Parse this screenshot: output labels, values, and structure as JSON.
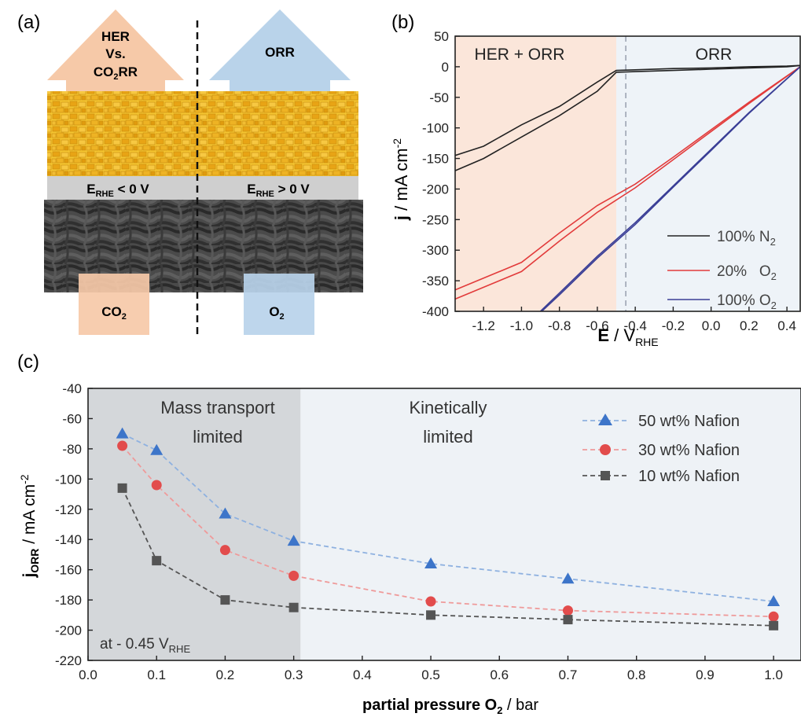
{
  "panels": {
    "a": {
      "label": "(a)",
      "arrow_left": {
        "line1": "HER",
        "line2": "Vs.",
        "line3_main": "CO",
        "line3_sub": "2",
        "line3_end": "RR"
      },
      "arrow_right": "ORR",
      "bottom_left_main": "CO",
      "bottom_left_sub": "2",
      "bottom_right_main": "O",
      "bottom_right_sub": "2",
      "band_left": {
        "main": "E",
        "sub": "RHE",
        "rest": " < 0 V"
      },
      "band_right": {
        "main": "E",
        "sub": "RHE",
        "rest": " > 0 V"
      },
      "colors": {
        "orange": "#f6c9a8",
        "blue": "#b9d3ea",
        "gold": "#e8ac1a",
        "carbon": "#3a3a3a",
        "band": "#c9c9c9"
      }
    },
    "b": {
      "label": "(b)",
      "region_left": "HER + ORR",
      "region_right": "ORR",
      "ylabel_main": "j",
      "ylabel_rest": " / mA cm",
      "ylabel_sup": "-2",
      "xlabel_main": "E",
      "xlabel_rest": " / V",
      "xlabel_sub": "RHE",
      "legend": [
        {
          "pre": "100% N",
          "sub": "2"
        },
        {
          "pre": "20%   O",
          "sub": "2"
        },
        {
          "pre": "100% O",
          "sub": "2"
        }
      ]
    },
    "c": {
      "label": "(c)",
      "region_left_l1": "Mass transport",
      "region_left_l2": "limited",
      "region_right_l1": "Kinetically",
      "region_right_l2": "limited",
      "note_main": "at - 0.45 V",
      "note_sub": "RHE",
      "ylabel_main": "j",
      "ylabel_sub": "ORR",
      "ylabel_rest": " / mA cm",
      "ylabel_sup": "-2",
      "xlabel_main": "partial pressure O",
      "xlabel_sub": "2",
      "xlabel_rest": " / bar",
      "legend": [
        "50 wt% Nafion",
        "30 wt% Nafion",
        "10 wt% Nafion"
      ]
    }
  },
  "chart_data": [
    {
      "panel": "b",
      "type": "line",
      "xlim": [
        -1.35,
        0.47
      ],
      "ylim": [
        -400,
        50
      ],
      "xticks": [
        "-1.2",
        "-1.0",
        "-0.8",
        "-0.6",
        "-0.4",
        "-0.2",
        "0.0",
        "0.2",
        "0.4"
      ],
      "yticks": [
        "50",
        "0",
        "-50",
        "-100",
        "-150",
        "-200",
        "-250",
        "-300",
        "-350",
        "-400"
      ],
      "shading": {
        "her_orr": [
          -1.35,
          -0.5
        ],
        "orr": [
          -0.5,
          0.47
        ],
        "divider_x": -0.45
      },
      "series": [
        {
          "name": "100% N2",
          "color": "#222222",
          "scans": [
            {
              "x": [
                -1.35,
                -1.2,
                -1.0,
                -0.8,
                -0.6,
                -0.5,
                -0.4,
                -0.2,
                0.0,
                0.2,
                0.4,
                0.47
              ],
              "y": [
                -145,
                -130,
                -95,
                -65,
                -25,
                -6,
                -5,
                -3,
                -2,
                0,
                1,
                2
              ]
            },
            {
              "x": [
                -1.35,
                -1.2,
                -1.0,
                -0.8,
                -0.6,
                -0.5,
                -0.4,
                -0.2,
                0.0,
                0.2,
                0.4,
                0.47
              ],
              "y": [
                -170,
                -150,
                -115,
                -80,
                -40,
                -9,
                -8,
                -6,
                -4,
                -2,
                0,
                2
              ]
            }
          ]
        },
        {
          "name": "20% O2",
          "color": "#e23b3b",
          "scans": [
            {
              "x": [
                -1.35,
                -1.0,
                -0.8,
                -0.6,
                -0.4,
                -0.2,
                0.0,
                0.2,
                0.47
              ],
              "y": [
                -365,
                -320,
                -272,
                -227,
                -192,
                -148,
                -103,
                -58,
                0
              ]
            },
            {
              "x": [
                -1.35,
                -1.0,
                -0.8,
                -0.6,
                -0.4,
                -0.2,
                0.0,
                0.2,
                0.47
              ],
              "y": [
                -380,
                -335,
                -285,
                -238,
                -198,
                -152,
                -106,
                -60,
                0
              ]
            }
          ]
        },
        {
          "name": "100% O2",
          "color": "#3a3e96",
          "scans": [
            {
              "x": [
                -0.9,
                -0.8,
                -0.6,
                -0.4,
                -0.2,
                0.0,
                0.2,
                0.47
              ],
              "y": [
                -400,
                -370,
                -310,
                -255,
                -195,
                -135,
                -75,
                0
              ]
            },
            {
              "x": [
                -0.9,
                -0.8,
                -0.6,
                -0.4,
                -0.2,
                0.0,
                0.2,
                0.47
              ],
              "y": [
                -402,
                -373,
                -313,
                -258,
                -197,
                -137,
                -76,
                0
              ]
            }
          ]
        }
      ]
    },
    {
      "panel": "c",
      "type": "line",
      "xlim": [
        0.0,
        1.04
      ],
      "ylim": [
        -220,
        -40
      ],
      "xticks": [
        "0.0",
        "0.1",
        "0.2",
        "0.3",
        "0.4",
        "0.5",
        "0.6",
        "0.7",
        "0.8",
        "0.9",
        "1.0"
      ],
      "yticks": [
        "-40",
        "-60",
        "-80",
        "-100",
        "-120",
        "-140",
        "-160",
        "-180",
        "-200",
        "-220"
      ],
      "shading": {
        "mass_transport": [
          0.0,
          0.31
        ],
        "kinetic": [
          0.31,
          1.04
        ]
      },
      "x": [
        0.05,
        0.1,
        0.2,
        0.3,
        0.5,
        0.7,
        1.0
      ],
      "series": [
        {
          "name": "50 wt% Nafion",
          "marker": "triangle",
          "color": "#3d75c9",
          "line_color": "#8eb1e0",
          "values": [
            -70,
            -81,
            -123,
            -141,
            -156,
            -166,
            -181
          ]
        },
        {
          "name": "30 wt% Nafion",
          "marker": "circle",
          "color": "#e24c4c",
          "line_color": "#ef9a9a",
          "values": [
            -78,
            -104,
            -147,
            -164,
            -181,
            -187,
            -191
          ]
        },
        {
          "name": "10 wt% Nafion",
          "marker": "square",
          "color": "#555555",
          "line_color": "#555555",
          "values": [
            -106,
            -154,
            -180,
            -185,
            -190,
            -193,
            -197
          ]
        }
      ]
    }
  ]
}
